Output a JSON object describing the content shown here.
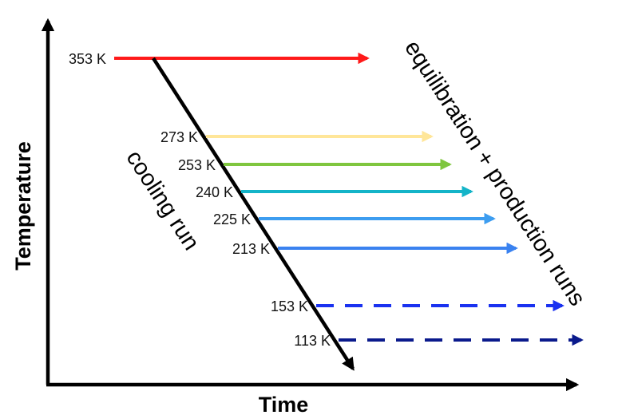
{
  "axes": {
    "x_title": "Time",
    "y_title": "Temperature"
  },
  "annotations": {
    "cooling_run": "cooling run",
    "equilibration_runs": "equilibration + production runs"
  },
  "start": {
    "label": "353 K",
    "color": "#ff1a1a"
  },
  "levels": [
    {
      "label": "273 K",
      "color": "#ffe699",
      "dashed": false
    },
    {
      "label": "253 K",
      "color": "#7fc63f",
      "dashed": false
    },
    {
      "label": "240 K",
      "color": "#14b4c8",
      "dashed": false
    },
    {
      "label": "225 K",
      "color": "#3d9df0",
      "dashed": false
    },
    {
      "label": "213 K",
      "color": "#3a82f0",
      "dashed": false
    },
    {
      "label": "153 K",
      "color": "#1a32f0",
      "dashed": true
    },
    {
      "label": "113 K",
      "color": "#0a1a8c",
      "dashed": true
    }
  ]
}
